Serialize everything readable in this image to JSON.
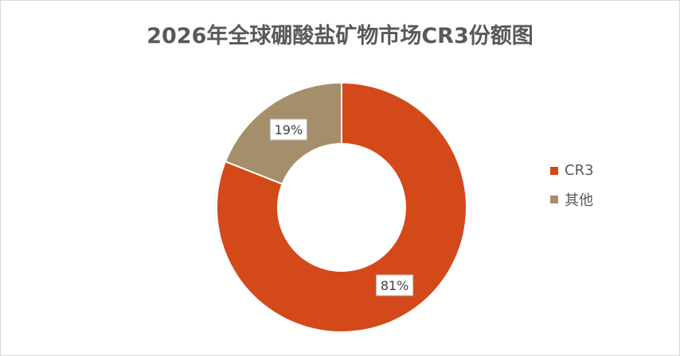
{
  "chart_data": {
    "type": "pie",
    "variant": "donut",
    "title": "2026年全球硼酸盐矿物市场CR3份额图",
    "categories": [
      "CR3",
      "其他"
    ],
    "values": [
      81,
      19
    ],
    "data_labels": [
      "81%",
      "19%"
    ],
    "colors": [
      "#D4491A",
      "#A58E6A"
    ],
    "legend_position": "right"
  }
}
